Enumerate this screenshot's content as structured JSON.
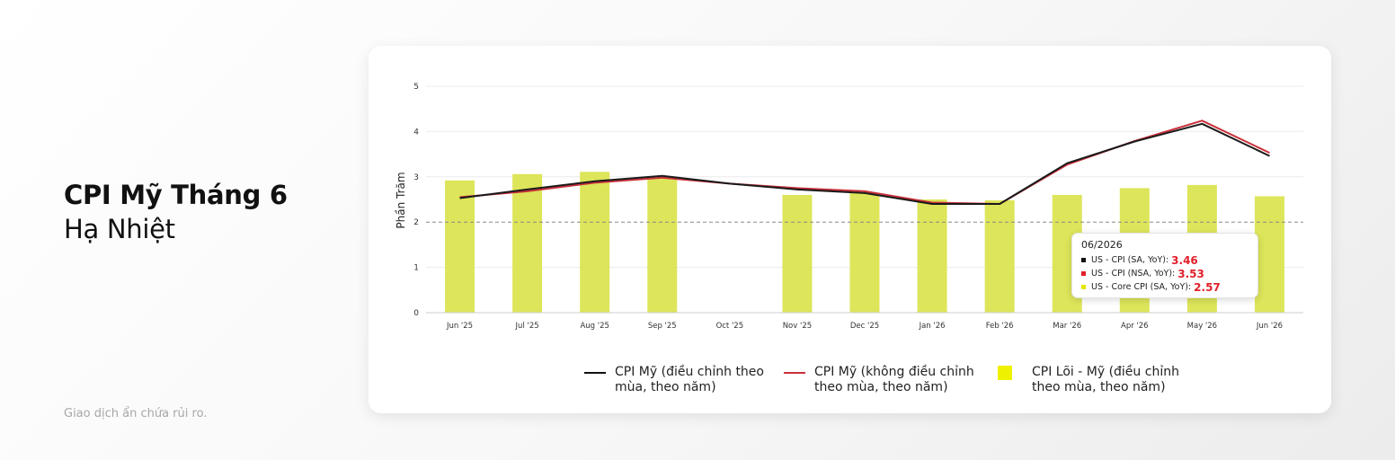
{
  "headline": {
    "bold": "CPI Mỹ Tháng 6",
    "light": "Hạ Nhiệt"
  },
  "disclaimer": "Giao dịch ẩn chứa rủi ro.",
  "tooltip": {
    "title": "06/2026",
    "rows": [
      {
        "name": "US - CPI (SA, YoY):",
        "value": "3.46",
        "color": "#111111"
      },
      {
        "name": "US - CPI (NSA, YoY):",
        "value": "3.53",
        "color": "#e0202b"
      },
      {
        "name": "US - Core CPI (SA, YoY):",
        "value": "2.57",
        "color": "#e6e600"
      }
    ]
  },
  "legend": [
    {
      "label": "CPI Mỹ (điều chỉnh theo mùa, theo năm)",
      "type": "line",
      "color": "#111111"
    },
    {
      "label": "CPI Mỹ (không điều chỉnh theo mùa, theo năm)",
      "type": "line",
      "color": "#c9303a"
    },
    {
      "label": "CPI Lõi - Mỹ (điều chỉnh theo mùa, theo năm)",
      "type": "box",
      "color": "#eef200"
    }
  ],
  "chart_data": {
    "type": "bar",
    "ylabel": "Phần Trăm",
    "ylim": [
      0,
      5
    ],
    "yticks": [
      0,
      1,
      2,
      3,
      4,
      5
    ],
    "reference_line": 2,
    "categories": [
      "Jun '25",
      "Jul '25",
      "Aug '25",
      "Sep '25",
      "Oct '25",
      "Nov '25",
      "Dec '25",
      "Jan '26",
      "Feb '26",
      "Mar '26",
      "Apr '26",
      "May '26",
      "Jun '26"
    ],
    "series": [
      {
        "name": "CPI Lõi - Mỹ (điều chỉnh theo mùa, theo năm)",
        "type": "bar",
        "color": "#dde55a",
        "values": [
          2.92,
          3.06,
          3.11,
          2.99,
          null,
          2.6,
          2.65,
          2.5,
          2.48,
          2.6,
          2.75,
          2.82,
          2.57
        ]
      },
      {
        "name": "CPI Mỹ (không điều chỉnh theo mùa, theo năm)",
        "type": "line",
        "color": "#c9303a",
        "values": [
          2.55,
          2.68,
          2.87,
          2.98,
          2.85,
          2.75,
          2.68,
          2.43,
          2.4,
          3.27,
          3.79,
          4.24,
          3.53
        ]
      },
      {
        "name": "CPI Mỹ (điều chỉnh theo mùa, theo năm)",
        "type": "line",
        "color": "#1a1a1a",
        "values": [
          2.53,
          2.72,
          2.9,
          3.02,
          2.85,
          2.72,
          2.64,
          2.4,
          2.4,
          3.3,
          3.78,
          4.17,
          3.46
        ]
      }
    ]
  }
}
